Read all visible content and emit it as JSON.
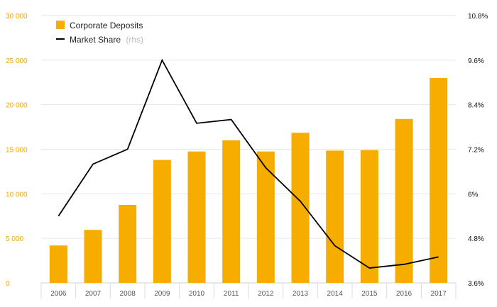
{
  "chart_data": {
    "type": "bar+line",
    "categories": [
      "2006",
      "2007",
      "2008",
      "2009",
      "2010",
      "2011",
      "2012",
      "2013",
      "2014",
      "2015",
      "2016",
      "2017"
    ],
    "series": [
      {
        "name": "Corporate Deposits",
        "type": "bar",
        "axis": "left",
        "color": "#f7ad00",
        "values": [
          4200,
          5950,
          8750,
          13800,
          14750,
          16000,
          14750,
          16850,
          14850,
          14900,
          18400,
          23000
        ]
      },
      {
        "name": "Market Share",
        "name_suffix": "(rhs)",
        "type": "line",
        "axis": "right",
        "color": "#000000",
        "values": [
          5.4,
          6.8,
          7.2,
          9.6,
          7.9,
          8.0,
          6.7,
          5.8,
          4.6,
          4.0,
          4.1,
          4.3
        ]
      }
    ],
    "y_left": {
      "ylim": [
        0,
        30000
      ],
      "ticks": [
        0,
        5000,
        10000,
        15000,
        20000,
        25000,
        30000
      ],
      "tick_labels": [
        "0",
        "5 000",
        "10 000",
        "15 000",
        "20 000",
        "25 000",
        "30 000"
      ],
      "color": "#f5a800"
    },
    "y_right": {
      "ylim": [
        3.6,
        10.8
      ],
      "ticks": [
        3.6,
        4.8,
        6.0,
        7.2,
        8.4,
        9.6,
        10.8
      ],
      "tick_labels": [
        "3.6%",
        "4.8%",
        "6%",
        "7.2%",
        "8.4%",
        "9.6%",
        "10.8%"
      ],
      "color": "#111111"
    },
    "title": "",
    "xlabel": "",
    "grid": true,
    "legend_position": "top-left"
  }
}
